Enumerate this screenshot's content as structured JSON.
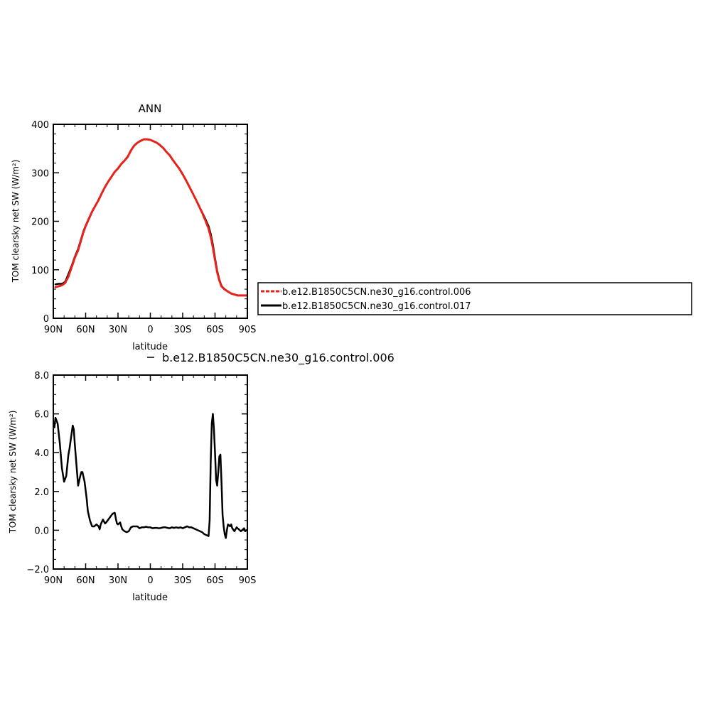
{
  "chart_data": [
    {
      "type": "line",
      "title": "ANN",
      "xlabel": "latitude",
      "ylabel": "TOM clearsky net SW (W/m²)",
      "xlim": [
        90,
        -90
      ],
      "ylim": [
        0,
        400
      ],
      "x_tick_values": [
        90,
        60,
        30,
        0,
        -30,
        -60,
        -90
      ],
      "x_tick_labels": [
        "90N",
        "60N",
        "30N",
        "0",
        "30S",
        "60S",
        "90S"
      ],
      "y_tick_values": [
        0,
        100,
        200,
        300,
        400
      ],
      "y_tick_labels": [
        "0",
        "100",
        "200",
        "300",
        "400"
      ],
      "legend": "right",
      "series": [
        {
          "name": "b.e12.B1850C5CN.ne30_g16.control.006",
          "color": "#e8211b",
          "dashed": true,
          "x": [
            88,
            85,
            82,
            79,
            76,
            73,
            70,
            67,
            64,
            62,
            60,
            57,
            54,
            51,
            48,
            45,
            42,
            39,
            36,
            33,
            30,
            27,
            24,
            21,
            18,
            15,
            12,
            9,
            6,
            3,
            0,
            -3,
            -6,
            -9,
            -12,
            -15,
            -18,
            -21,
            -24,
            -27,
            -30,
            -33,
            -36,
            -39,
            -42,
            -45,
            -48,
            -51,
            -54,
            -56,
            -58,
            -60,
            -62,
            -64,
            -66,
            -68,
            -70,
            -72,
            -75,
            -78,
            -81,
            -84,
            -87,
            -89
          ],
          "y": [
            64,
            66,
            68,
            73,
            86,
            105,
            125,
            140,
            163,
            178,
            190,
            205,
            220,
            232,
            244,
            258,
            271,
            282,
            292,
            302,
            309,
            318,
            325,
            333,
            346,
            356,
            362,
            366,
            369,
            369,
            368,
            365,
            362,
            357,
            351,
            343,
            336,
            326,
            317,
            308,
            297,
            285,
            272,
            259,
            246,
            232,
            218,
            202,
            185,
            168,
            146,
            120,
            95,
            78,
            66,
            61,
            58,
            55,
            51,
            49,
            47,
            47,
            47,
            47
          ]
        },
        {
          "name": "b.e12.B1850C5CN.ne30_g16.control.017",
          "color": "#000000",
          "dashed": false,
          "x": [
            88,
            85,
            82,
            79,
            76,
            73,
            70,
            67,
            64,
            62,
            60,
            57,
            54,
            51,
            48,
            45,
            42,
            39,
            36,
            33,
            30,
            27,
            24,
            21,
            18,
            15,
            12,
            9,
            6,
            3,
            0,
            -3,
            -6,
            -9,
            -12,
            -15,
            -18,
            -21,
            -24,
            -27,
            -30,
            -33,
            -36,
            -39,
            -42,
            -45,
            -48,
            -51,
            -54,
            -56,
            -58,
            -60,
            -62,
            -64,
            -66,
            -68,
            -70,
            -72,
            -75,
            -78,
            -81,
            -84,
            -87,
            -89
          ],
          "y": [
            70,
            71,
            71,
            75,
            91,
            108,
            127,
            143,
            165,
            180,
            191,
            206,
            220,
            232,
            244,
            258,
            271,
            282,
            292,
            302,
            309,
            318,
            325,
            333,
            346,
            356,
            362,
            366,
            369,
            369,
            368,
            365,
            362,
            357,
            351,
            343,
            336,
            326,
            317,
            308,
            297,
            285,
            272,
            259,
            246,
            232,
            219,
            205,
            190,
            174,
            152,
            124,
            98,
            80,
            67,
            62,
            58,
            55,
            51,
            49,
            47,
            47,
            47,
            47
          ]
        }
      ]
    },
    {
      "type": "line",
      "title": "",
      "xlabel": "latitude",
      "ylabel": "TOM clearsky net SW (W/m²)",
      "xlim": [
        90,
        -90
      ],
      "ylim": [
        -2.0,
        8.0
      ],
      "x_tick_values": [
        90,
        60,
        30,
        0,
        -30,
        -60,
        -90
      ],
      "x_tick_labels": [
        "90N",
        "60N",
        "30N",
        "0",
        "30S",
        "60S",
        "90S"
      ],
      "y_tick_values": [
        -2,
        0,
        2,
        4,
        6,
        8
      ],
      "y_tick_labels": [
        "−2.0",
        "0.0",
        "2.0",
        "4.0",
        "6.0",
        "8.0"
      ],
      "legend": "top",
      "series": [
        {
          "name": "b.e12.B1850C5CN.ne30_g16.control.006",
          "color": "#000000",
          "dashed": false,
          "x": [
            89,
            88,
            86,
            84,
            82,
            80,
            78,
            76,
            75,
            74,
            72,
            71,
            70,
            68,
            67,
            65,
            64,
            63,
            61,
            59,
            58,
            56,
            54,
            52,
            50,
            48,
            47,
            46,
            44,
            42,
            41,
            39,
            37,
            35,
            33,
            32,
            31,
            30,
            28,
            27,
            26,
            24,
            22,
            20,
            18,
            16,
            14,
            12,
            10,
            8,
            6,
            4,
            2,
            0,
            -2,
            -4,
            -6,
            -8,
            -10,
            -12,
            -14,
            -16,
            -18,
            -20,
            -22,
            -24,
            -26,
            -28,
            -30,
            -32,
            -34,
            -36,
            -38,
            -40,
            -42,
            -44,
            -46,
            -48,
            -50,
            -52,
            -54,
            -55,
            -56,
            -57,
            -58,
            -59,
            -60,
            -61,
            -62,
            -63,
            -64,
            -65,
            -66,
            -67,
            -68,
            -69,
            -70,
            -71,
            -72,
            -73,
            -74,
            -75,
            -76,
            -78,
            -80,
            -82,
            -84,
            -86,
            -87,
            -88,
            -89
          ],
          "y": [
            5.3,
            5.8,
            5.5,
            4.5,
            3.2,
            2.5,
            2.8,
            3.9,
            4.2,
            4.6,
            5.4,
            5.2,
            4.4,
            3.0,
            2.3,
            2.8,
            3.0,
            3.0,
            2.5,
            1.6,
            1.0,
            0.5,
            0.2,
            0.2,
            0.3,
            0.2,
            0.05,
            0.3,
            0.55,
            0.35,
            0.4,
            0.55,
            0.7,
            0.85,
            0.9,
            0.6,
            0.35,
            0.3,
            0.4,
            0.2,
            0.05,
            -0.05,
            -0.1,
            -0.05,
            0.15,
            0.2,
            0.2,
            0.2,
            0.1,
            0.15,
            0.15,
            0.18,
            0.15,
            0.15,
            0.1,
            0.12,
            0.12,
            0.1,
            0.12,
            0.15,
            0.15,
            0.12,
            0.1,
            0.15,
            0.12,
            0.15,
            0.12,
            0.15,
            0.1,
            0.15,
            0.2,
            0.15,
            0.15,
            0.1,
            0.05,
            0.0,
            -0.05,
            -0.1,
            -0.2,
            -0.25,
            -0.3,
            0.5,
            3.5,
            5.5,
            6.0,
            5.2,
            4.0,
            2.6,
            2.3,
            3.0,
            3.8,
            3.9,
            2.5,
            0.8,
            0.2,
            -0.2,
            -0.4,
            0.0,
            0.3,
            0.25,
            0.2,
            0.3,
            0.1,
            -0.05,
            0.15,
            0.05,
            -0.05,
            0.05,
            0.1,
            -0.05,
            0.0
          ]
        }
      ]
    }
  ]
}
